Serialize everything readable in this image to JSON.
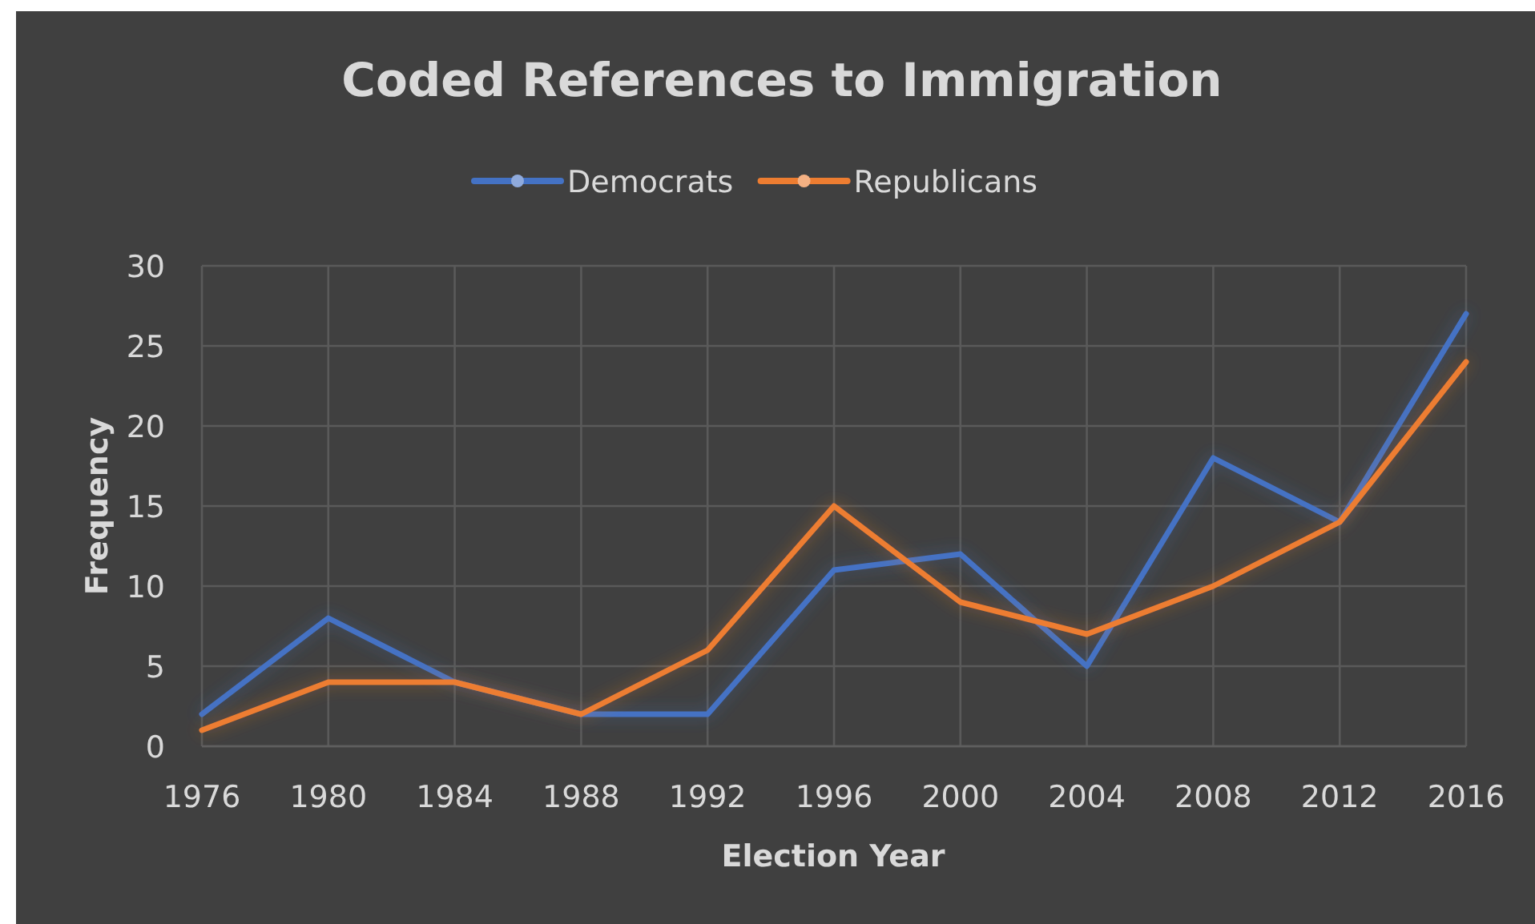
{
  "chart_data": {
    "type": "line",
    "title": "Coded References to Immigration",
    "xlabel": "Election Year",
    "ylabel": "Frequency",
    "categories": [
      "1976",
      "1980",
      "1984",
      "1988",
      "1992",
      "1996",
      "2000",
      "2004",
      "2008",
      "2012",
      "2016"
    ],
    "series": [
      {
        "name": "Democrats",
        "color": "#4472c4",
        "values": [
          2,
          8,
          4,
          2,
          2,
          11,
          12,
          5,
          18,
          14,
          27
        ]
      },
      {
        "name": "Republicans",
        "color": "#ed7d31",
        "values": [
          1,
          4,
          4,
          2,
          6,
          15,
          9,
          7,
          10,
          14,
          24
        ]
      }
    ],
    "ylim": [
      0,
      30
    ],
    "yticks": [
      0,
      5,
      10,
      15,
      20,
      25,
      30
    ],
    "grid": true,
    "legend": "top",
    "marker": "none",
    "line_style": "solid"
  }
}
